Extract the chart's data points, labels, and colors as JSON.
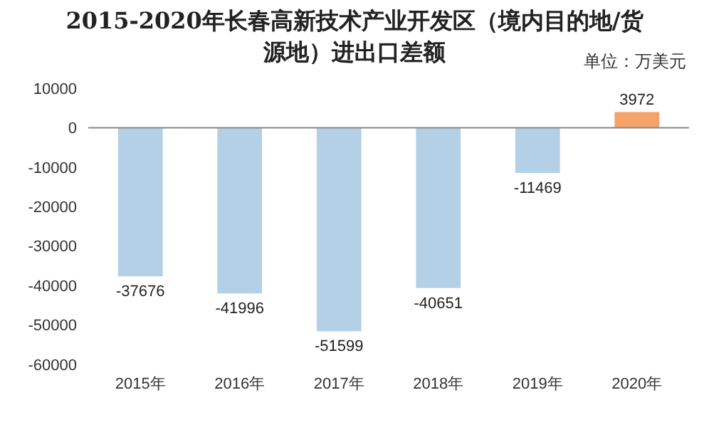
{
  "chart_data": {
    "type": "bar",
    "title": "2015-2020年长春高新技术产业开发区（境内目的地/货源地）进出口差额",
    "subtitle": "单位：万美元",
    "categories": [
      "2015年",
      "2016年",
      "2017年",
      "2018年",
      "2019年",
      "2020年"
    ],
    "values": [
      -37676,
      -41996,
      -51599,
      -40651,
      -11469,
      3972
    ],
    "colors": [
      "#b4d0e6",
      "#b4d0e6",
      "#b4d0e6",
      "#b4d0e6",
      "#b4d0e6",
      "#f4a46a"
    ],
    "ylim": [
      -60000,
      10000
    ],
    "yticks": [
      10000,
      0,
      -10000,
      -20000,
      -30000,
      -40000,
      -50000,
      -60000
    ],
    "data_labels": true
  }
}
